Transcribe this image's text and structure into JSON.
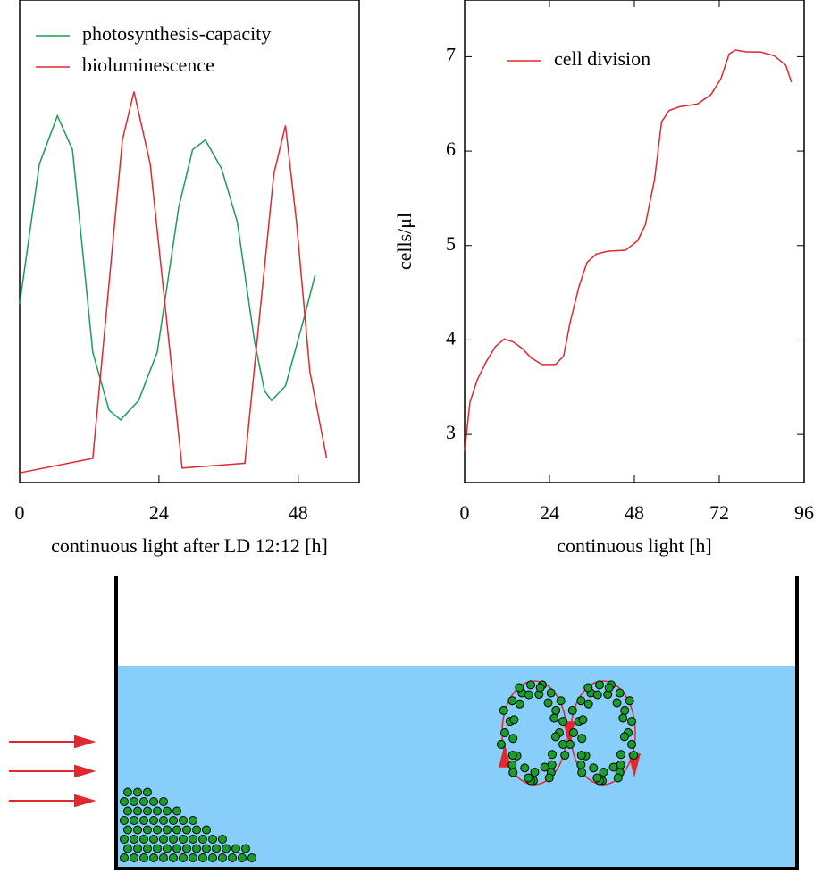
{
  "chart_data": [
    {
      "type": "line",
      "xlabel": "continuous light after LD 12:12 [h]",
      "xlim": [
        0,
        58.5
      ],
      "ylim": [
        0,
        1
      ],
      "xticks": [
        0,
        24,
        48
      ],
      "grid": false,
      "legend": "upper left",
      "series": [
        {
          "name": "photosynthesis-capacity",
          "color": "#1a9e55",
          "x": [
            0,
            3.4,
            6.5,
            9.1,
            12.6,
            15.4,
            17.4,
            20.5,
            23.7,
            27.4,
            29.8,
            32,
            34.8,
            37.5,
            40.5,
            42.2,
            43.4,
            45.8,
            49.2,
            50.9
          ],
          "values": [
            0.37,
            0.66,
            0.76,
            0.69,
            0.27,
            0.15,
            0.13,
            0.17,
            0.27,
            0.57,
            0.69,
            0.71,
            0.65,
            0.54,
            0.29,
            0.19,
            0.17,
            0.2,
            0.35,
            0.43
          ]
        },
        {
          "name": "bioluminescence",
          "color": "#e0282e",
          "x": [
            0,
            12.6,
            17.7,
            19.7,
            22.5,
            28,
            38.8,
            43.8,
            45.8,
            47.7,
            50,
            52.9
          ],
          "values": [
            0.02,
            0.05,
            0.71,
            0.81,
            0.66,
            0.03,
            0.04,
            0.64,
            0.74,
            0.54,
            0.23,
            0.05
          ]
        }
      ]
    },
    {
      "type": "line",
      "xlabel": "continuous light [h]",
      "ylabel": "cells/μl",
      "xlim": [
        0,
        96
      ],
      "ylim": [
        2.49,
        7.6
      ],
      "xticks": [
        0,
        24,
        48,
        72,
        96
      ],
      "yticks": [
        3,
        4,
        5,
        6,
        7
      ],
      "grid": false,
      "legend": "upper left",
      "series": [
        {
          "name": "cell division",
          "color": "#e0282e",
          "x": [
            0,
            1.5,
            3.6,
            6.1,
            8.7,
            11.2,
            13.7,
            16.3,
            18.8,
            21.9,
            25.7,
            28,
            29.8,
            32.3,
            34.6,
            37.2,
            40.5,
            45.5,
            48.9,
            51.1,
            53.7,
            55.7,
            57.8,
            60.8,
            65.9,
            69.7,
            72.5,
            74.8,
            76.6,
            79.9,
            83.7,
            87.5,
            90.8,
            92.4
          ],
          "values": [
            2.82,
            3.34,
            3.58,
            3.77,
            3.93,
            4.01,
            3.98,
            3.91,
            3.81,
            3.74,
            3.74,
            3.83,
            4.18,
            4.56,
            4.82,
            4.91,
            4.94,
            4.95,
            5.05,
            5.22,
            5.7,
            6.31,
            6.43,
            6.47,
            6.5,
            6.6,
            6.77,
            7.03,
            7.07,
            7.05,
            7.05,
            7.01,
            6.91,
            6.73
          ]
        }
      ]
    }
  ]
}
